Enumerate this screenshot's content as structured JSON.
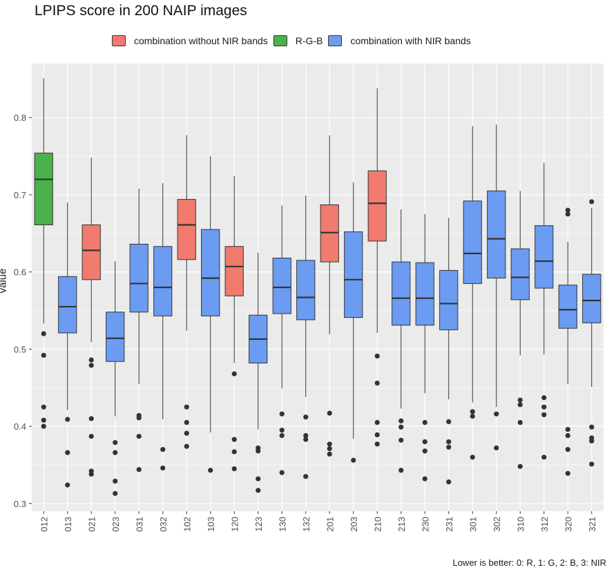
{
  "title": "LPIPS score in 200 NAIP images",
  "caption": "Lower is better: 0: R, 1: G, 2: B, 3: NIR",
  "colors": {
    "panel_bg": "#ebebeb",
    "grid": "#ffffff",
    "combination without NIR bands": "#f07b6e",
    "R-G-B": "#4bb14b",
    "combination with NIR bands": "#6b9cf2",
    "outline": "#333333"
  },
  "legend": [
    {
      "label": "combination without NIR bands",
      "group": "combination without NIR bands"
    },
    {
      "label": "R-G-B",
      "group": "R-G-B"
    },
    {
      "label": "combination with NIR bands",
      "group": "combination with NIR bands"
    }
  ],
  "chart_data": {
    "type": "boxplot",
    "title": "LPIPS score in 200 NAIP images",
    "ylabel": "value",
    "xlabel": "",
    "ylim": [
      0.29,
      0.87
    ],
    "y_ticks": [
      0.3,
      0.4,
      0.5,
      0.6,
      0.7,
      0.8
    ],
    "y_tick_labels": [
      "0.3",
      "0.4",
      "0.5",
      "0.6",
      "0.7",
      "0.8"
    ],
    "grid": true,
    "legend_position": "top",
    "series": [
      {
        "category": "012",
        "group": "R-G-B",
        "whisker_low": 0.533,
        "q1": 0.661,
        "median": 0.72,
        "q3": 0.754,
        "whisker_high": 0.851,
        "outliers": [
          0.52,
          0.492,
          0.425,
          0.408,
          0.4
        ]
      },
      {
        "category": "013",
        "group": "combination with NIR bands",
        "whisker_low": 0.421,
        "q1": 0.521,
        "median": 0.555,
        "q3": 0.594,
        "whisker_high": 0.69,
        "outliers": [
          0.409,
          0.366,
          0.324
        ]
      },
      {
        "category": "021",
        "group": "combination without NIR bands",
        "whisker_low": 0.509,
        "q1": 0.59,
        "median": 0.628,
        "q3": 0.661,
        "whisker_high": 0.748,
        "outliers": [
          0.486,
          0.479,
          0.41,
          0.387,
          0.342,
          0.338
        ]
      },
      {
        "category": "023",
        "group": "combination with NIR bands",
        "whisker_low": 0.413,
        "q1": 0.484,
        "median": 0.514,
        "q3": 0.548,
        "whisker_high": 0.614,
        "outliers": [
          0.379,
          0.366,
          0.329,
          0.313
        ]
      },
      {
        "category": "031",
        "group": "combination with NIR bands",
        "whisker_low": 0.455,
        "q1": 0.548,
        "median": 0.585,
        "q3": 0.636,
        "whisker_high": 0.708,
        "outliers": [
          0.414,
          0.411,
          0.387,
          0.344
        ]
      },
      {
        "category": "032",
        "group": "combination with NIR bands",
        "whisker_low": 0.409,
        "q1": 0.543,
        "median": 0.58,
        "q3": 0.633,
        "whisker_high": 0.715,
        "outliers": [
          0.37,
          0.346
        ]
      },
      {
        "category": "102",
        "group": "combination without NIR bands",
        "whisker_low": 0.524,
        "q1": 0.616,
        "median": 0.661,
        "q3": 0.694,
        "whisker_high": 0.777,
        "outliers": [
          0.425,
          0.405,
          0.391,
          0.374
        ]
      },
      {
        "category": "103",
        "group": "combination with NIR bands",
        "whisker_low": 0.392,
        "q1": 0.543,
        "median": 0.592,
        "q3": 0.655,
        "whisker_high": 0.75,
        "outliers": [
          0.343
        ]
      },
      {
        "category": "120",
        "group": "combination without NIR bands",
        "whisker_low": 0.482,
        "q1": 0.569,
        "median": 0.607,
        "q3": 0.633,
        "whisker_high": 0.724,
        "outliers": [
          0.468,
          0.383,
          0.367,
          0.345
        ]
      },
      {
        "category": "123",
        "group": "combination with NIR bands",
        "whisker_low": 0.396,
        "q1": 0.482,
        "median": 0.513,
        "q3": 0.544,
        "whisker_high": 0.625,
        "outliers": [
          0.372,
          0.368,
          0.332,
          0.317
        ]
      },
      {
        "category": "130",
        "group": "combination with NIR bands",
        "whisker_low": 0.449,
        "q1": 0.546,
        "median": 0.58,
        "q3": 0.618,
        "whisker_high": 0.686,
        "outliers": [
          0.416,
          0.395,
          0.388,
          0.34
        ]
      },
      {
        "category": "132",
        "group": "combination with NIR bands",
        "whisker_low": 0.438,
        "q1": 0.538,
        "median": 0.567,
        "q3": 0.615,
        "whisker_high": 0.699,
        "outliers": [
          0.412,
          0.388,
          0.383,
          0.335
        ]
      },
      {
        "category": "201",
        "group": "combination without NIR bands",
        "whisker_low": 0.519,
        "q1": 0.613,
        "median": 0.651,
        "q3": 0.687,
        "whisker_high": 0.777,
        "outliers": [
          0.417,
          0.377,
          0.371,
          0.364
        ]
      },
      {
        "category": "203",
        "group": "combination with NIR bands",
        "whisker_low": 0.384,
        "q1": 0.541,
        "median": 0.59,
        "q3": 0.652,
        "whisker_high": 0.716,
        "outliers": [
          0.356
        ]
      },
      {
        "category": "210",
        "group": "combination without NIR bands",
        "whisker_low": 0.521,
        "q1": 0.64,
        "median": 0.689,
        "q3": 0.731,
        "whisker_high": 0.838,
        "outliers": [
          0.491,
          0.456,
          0.405,
          0.389,
          0.377
        ]
      },
      {
        "category": "213",
        "group": "combination with NIR bands",
        "whisker_low": 0.423,
        "q1": 0.531,
        "median": 0.566,
        "q3": 0.613,
        "whisker_high": 0.681,
        "outliers": [
          0.407,
          0.399,
          0.382,
          0.343
        ]
      },
      {
        "category": "230",
        "group": "combination with NIR bands",
        "whisker_low": 0.443,
        "q1": 0.531,
        "median": 0.566,
        "q3": 0.612,
        "whisker_high": 0.675,
        "outliers": [
          0.405,
          0.38,
          0.368,
          0.332
        ]
      },
      {
        "category": "231",
        "group": "combination with NIR bands",
        "whisker_low": 0.435,
        "q1": 0.525,
        "median": 0.559,
        "q3": 0.602,
        "whisker_high": 0.67,
        "outliers": [
          0.406,
          0.38,
          0.373,
          0.328
        ]
      },
      {
        "category": "301",
        "group": "combination with NIR bands",
        "whisker_low": 0.431,
        "q1": 0.585,
        "median": 0.624,
        "q3": 0.692,
        "whisker_high": 0.789,
        "outliers": [
          0.419,
          0.413,
          0.36
        ]
      },
      {
        "category": "302",
        "group": "combination with NIR bands",
        "whisker_low": 0.425,
        "q1": 0.592,
        "median": 0.643,
        "q3": 0.705,
        "whisker_high": 0.791,
        "outliers": [
          0.416,
          0.372
        ]
      },
      {
        "category": "310",
        "group": "combination with NIR bands",
        "whisker_low": 0.492,
        "q1": 0.564,
        "median": 0.593,
        "q3": 0.63,
        "whisker_high": 0.705,
        "outliers": [
          0.434,
          0.428,
          0.405,
          0.348
        ]
      },
      {
        "category": "312",
        "group": "combination with NIR bands",
        "whisker_low": 0.493,
        "q1": 0.579,
        "median": 0.614,
        "q3": 0.66,
        "whisker_high": 0.741,
        "outliers": [
          0.437,
          0.425,
          0.415,
          0.36
        ]
      },
      {
        "category": "320",
        "group": "combination with NIR bands",
        "whisker_low": 0.455,
        "q1": 0.527,
        "median": 0.551,
        "q3": 0.583,
        "whisker_high": 0.639,
        "outliers": [
          0.68,
          0.675,
          0.396,
          0.388,
          0.37,
          0.339
        ]
      },
      {
        "category": "321",
        "group": "combination with NIR bands",
        "whisker_low": 0.451,
        "q1": 0.534,
        "median": 0.563,
        "q3": 0.597,
        "whisker_high": 0.683,
        "outliers": [
          0.691,
          0.399,
          0.385,
          0.381,
          0.351
        ]
      }
    ]
  }
}
